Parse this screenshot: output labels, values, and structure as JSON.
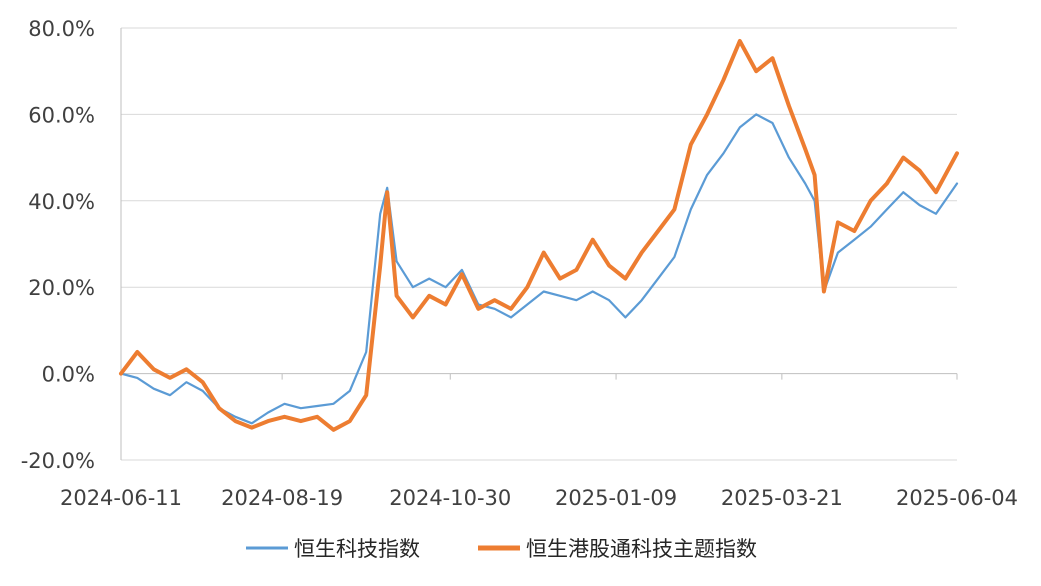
{
  "chart_data": {
    "type": "line",
    "title": "",
    "xlabel": "",
    "ylabel": "",
    "ylim": [
      -20,
      80
    ],
    "yticks": [
      -20,
      0,
      20,
      40,
      60,
      80
    ],
    "ytick_labels": [
      "-20.0%",
      "0.0%",
      "20.0%",
      "40.0%",
      "60.0%",
      "80.0%"
    ],
    "xlim": [
      "2024-06-11",
      "2025-06-04"
    ],
    "xticks": [
      "2024-06-11",
      "2024-08-19",
      "2024-10-30",
      "2025-01-09",
      "2025-03-21",
      "2025-06-04"
    ],
    "grid": "horizontal",
    "legend": "bottom",
    "series": [
      {
        "name": "恒生科技指数",
        "color": "#5b9bd5",
        "points": [
          [
            "2024-06-11",
            0.0
          ],
          [
            "2024-06-18",
            -1.0
          ],
          [
            "2024-06-25",
            -3.5
          ],
          [
            "2024-07-02",
            -5.0
          ],
          [
            "2024-07-09",
            -2.0
          ],
          [
            "2024-07-16",
            -4.0
          ],
          [
            "2024-07-23",
            -8.0
          ],
          [
            "2024-07-30",
            -10.0
          ],
          [
            "2024-08-06",
            -11.5
          ],
          [
            "2024-08-13",
            -9.0
          ],
          [
            "2024-08-20",
            -7.0
          ],
          [
            "2024-08-27",
            -8.0
          ],
          [
            "2024-09-03",
            -7.5
          ],
          [
            "2024-09-10",
            -7.0
          ],
          [
            "2024-09-17",
            -4.0
          ],
          [
            "2024-09-24",
            5.0
          ],
          [
            "2024-09-30",
            37.0
          ],
          [
            "2024-10-03",
            43.0
          ],
          [
            "2024-10-07",
            26.0
          ],
          [
            "2024-10-14",
            20.0
          ],
          [
            "2024-10-21",
            22.0
          ],
          [
            "2024-10-28",
            20.0
          ],
          [
            "2024-11-04",
            24.0
          ],
          [
            "2024-11-11",
            16.0
          ],
          [
            "2024-11-18",
            15.0
          ],
          [
            "2024-11-25",
            13.0
          ],
          [
            "2024-12-02",
            16.0
          ],
          [
            "2024-12-09",
            19.0
          ],
          [
            "2024-12-16",
            18.0
          ],
          [
            "2024-12-23",
            17.0
          ],
          [
            "2024-12-30",
            19.0
          ],
          [
            "2025-01-06",
            17.0
          ],
          [
            "2025-01-13",
            13.0
          ],
          [
            "2025-01-20",
            17.0
          ],
          [
            "2025-01-27",
            22.0
          ],
          [
            "2025-02-03",
            27.0
          ],
          [
            "2025-02-10",
            38.0
          ],
          [
            "2025-02-17",
            46.0
          ],
          [
            "2025-02-24",
            51.0
          ],
          [
            "2025-03-03",
            57.0
          ],
          [
            "2025-03-10",
            60.0
          ],
          [
            "2025-03-17",
            58.0
          ],
          [
            "2025-03-24",
            50.0
          ],
          [
            "2025-03-31",
            44.0
          ],
          [
            "2025-04-04",
            40.0
          ],
          [
            "2025-04-08",
            19.0
          ],
          [
            "2025-04-14",
            28.0
          ],
          [
            "2025-04-21",
            31.0
          ],
          [
            "2025-04-28",
            34.0
          ],
          [
            "2025-05-05",
            38.0
          ],
          [
            "2025-05-12",
            42.0
          ],
          [
            "2025-05-19",
            39.0
          ],
          [
            "2025-05-26",
            37.0
          ],
          [
            "2025-06-04",
            44.0
          ]
        ]
      },
      {
        "name": "恒生港股通科技主题指数",
        "color": "#ed7d31",
        "points": [
          [
            "2024-06-11",
            0.0
          ],
          [
            "2024-06-18",
            5.0
          ],
          [
            "2024-06-25",
            1.0
          ],
          [
            "2024-07-02",
            -1.0
          ],
          [
            "2024-07-09",
            1.0
          ],
          [
            "2024-07-16",
            -2.0
          ],
          [
            "2024-07-23",
            -8.0
          ],
          [
            "2024-07-30",
            -11.0
          ],
          [
            "2024-08-06",
            -12.5
          ],
          [
            "2024-08-13",
            -11.0
          ],
          [
            "2024-08-20",
            -10.0
          ],
          [
            "2024-08-27",
            -11.0
          ],
          [
            "2024-09-03",
            -10.0
          ],
          [
            "2024-09-10",
            -13.0
          ],
          [
            "2024-09-17",
            -11.0
          ],
          [
            "2024-09-24",
            -5.0
          ],
          [
            "2024-09-30",
            25.0
          ],
          [
            "2024-10-03",
            42.0
          ],
          [
            "2024-10-07",
            18.0
          ],
          [
            "2024-10-14",
            13.0
          ],
          [
            "2024-10-21",
            18.0
          ],
          [
            "2024-10-28",
            16.0
          ],
          [
            "2024-11-04",
            23.0
          ],
          [
            "2024-11-11",
            15.0
          ],
          [
            "2024-11-18",
            17.0
          ],
          [
            "2024-11-25",
            15.0
          ],
          [
            "2024-12-02",
            20.0
          ],
          [
            "2024-12-09",
            28.0
          ],
          [
            "2024-12-16",
            22.0
          ],
          [
            "2024-12-23",
            24.0
          ],
          [
            "2024-12-30",
            31.0
          ],
          [
            "2025-01-06",
            25.0
          ],
          [
            "2025-01-13",
            22.0
          ],
          [
            "2025-01-20",
            28.0
          ],
          [
            "2025-01-27",
            33.0
          ],
          [
            "2025-02-03",
            38.0
          ],
          [
            "2025-02-10",
            53.0
          ],
          [
            "2025-02-17",
            60.0
          ],
          [
            "2025-02-24",
            68.0
          ],
          [
            "2025-03-03",
            77.0
          ],
          [
            "2025-03-10",
            70.0
          ],
          [
            "2025-03-17",
            73.0
          ],
          [
            "2025-03-24",
            62.0
          ],
          [
            "2025-03-31",
            52.0
          ],
          [
            "2025-04-04",
            46.0
          ],
          [
            "2025-04-08",
            19.0
          ],
          [
            "2025-04-14",
            35.0
          ],
          [
            "2025-04-21",
            33.0
          ],
          [
            "2025-04-28",
            40.0
          ],
          [
            "2025-05-05",
            44.0
          ],
          [
            "2025-05-12",
            50.0
          ],
          [
            "2025-05-19",
            47.0
          ],
          [
            "2025-05-26",
            42.0
          ],
          [
            "2025-06-04",
            51.0
          ]
        ]
      }
    ]
  }
}
